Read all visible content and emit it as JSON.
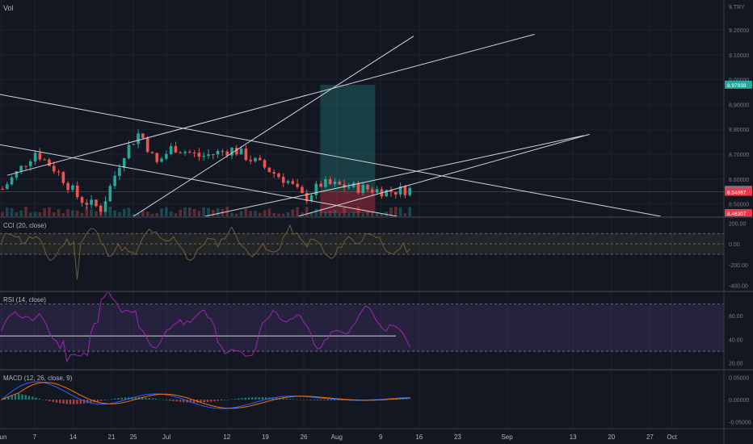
{
  "chart_data": {
    "type": "candlestick",
    "title": "",
    "x_axis": {
      "labels": [
        "Jun",
        "7",
        "14",
        "21",
        "25",
        "Jul",
        "12",
        "19",
        "26",
        "Aug",
        "9",
        "16",
        "23",
        "Sep",
        "13",
        "20",
        "27",
        "Oct"
      ]
    },
    "price_panel": {
      "label": "Vol",
      "axis_ticks": [
        "8.50000",
        "8.60000",
        "8.70000",
        "8.80000",
        "8.90000",
        "9.00000",
        "9.10000",
        "9.20000"
      ],
      "top_tick_label": "9.TRY",
      "ylim": [
        8.45,
        9.32
      ],
      "price_tags": [
        {
          "value": "8.97939",
          "color": "#26a69a"
        },
        {
          "value": "8.55648",
          "color": "#787b86"
        },
        {
          "value": "8.54867",
          "color": "#f23645"
        },
        {
          "value": "8.46307",
          "color": "#f23645"
        }
      ],
      "position_box": {
        "entry": 8.552,
        "target": 8.979,
        "stop": 8.463,
        "start": "Jul 29",
        "end": "Aug 8"
      },
      "trendlines": [
        {
          "from": [
            "May 30",
            8.947
          ],
          "to": [
            "Sep 29",
            8.45
          ]
        },
        {
          "from": [
            "May 30",
            8.745
          ],
          "to": [
            "Aug 12",
            8.45
          ]
        },
        {
          "from": [
            "Jun 2",
            8.615
          ],
          "to": [
            "Sep 6",
            9.182
          ]
        },
        {
          "from": [
            "Jun 25",
            8.45
          ],
          "to": [
            "Aug 15",
            9.175
          ]
        },
        {
          "from": [
            "Jul 8",
            8.45
          ],
          "to": [
            "Sep 15",
            8.775
          ]
        },
        {
          "from": [
            "Jul 25",
            8.45
          ],
          "to": [
            "Sep 16",
            8.78
          ]
        }
      ],
      "ohlc_bars": "~115 daily candles from late May to Jul 29; range roughly 8.45–8.80, peak ~8.80 near Jun 21, last ~8.55"
    },
    "indicators": [
      {
        "name": "CCI (20, close)",
        "axis_ticks": [
          "200.00",
          "0.00",
          "-200.00",
          "-400.00"
        ],
        "ylim": [
          -450,
          250
        ],
        "band": [
          -100,
          100
        ],
        "last": -60
      },
      {
        "name": "RSI (14, close)",
        "axis_ticks": [
          "60.00",
          "40.00",
          "20.00"
        ],
        "ylim": [
          15,
          80
        ],
        "band": [
          30,
          70
        ],
        "horizontal_line": 43,
        "last": 45
      },
      {
        "name": "MACD (12, 26, close, 9)",
        "axis_ticks": [
          "0.05000",
          "0.00000",
          "-0.05000"
        ],
        "ylim": [
          -0.065,
          0.065
        ]
      }
    ]
  }
}
